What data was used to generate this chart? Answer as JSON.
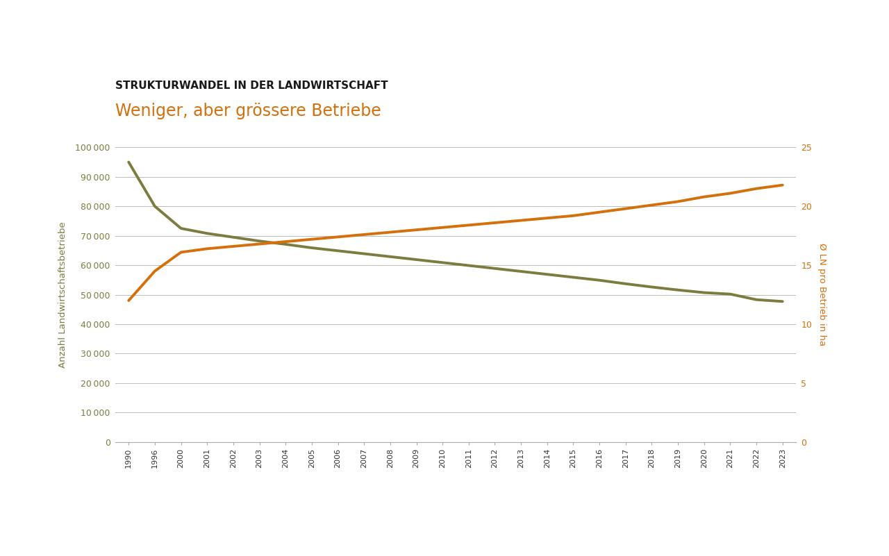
{
  "title_black": "STRUKTURWANDEL IN DER LANDWIRTSCHAFT",
  "title_orange": "Weniger, aber grössere Betriebe",
  "background_color": "#ffffff",
  "olive_color": "#7b7c3e",
  "orange_color": "#d4700c",
  "left_ylabel": "Anzahl Landwirtschaftsbetriebe",
  "right_ylabel": "Ø LN pro Betrieb in ha",
  "years": [
    1990,
    1996,
    2000,
    2001,
    2002,
    2003,
    2004,
    2005,
    2006,
    2007,
    2008,
    2009,
    2010,
    2011,
    2012,
    2013,
    2014,
    2015,
    2016,
    2017,
    2018,
    2019,
    2020,
    2021,
    2022,
    2023
  ],
  "betriebe": [
    95000,
    80000,
    72500,
    70800,
    69500,
    68200,
    67100,
    65900,
    64900,
    63900,
    62900,
    61900,
    60900,
    59900,
    58900,
    57900,
    56900,
    55900,
    54900,
    53700,
    52600,
    51600,
    50700,
    50200,
    48300,
    47700
  ],
  "flaeche": [
    12.0,
    14.5,
    16.1,
    16.4,
    16.6,
    16.8,
    17.0,
    17.2,
    17.4,
    17.6,
    17.8,
    18.0,
    18.2,
    18.4,
    18.6,
    18.8,
    19.0,
    19.2,
    19.5,
    19.8,
    20.1,
    20.4,
    20.8,
    21.1,
    21.5,
    21.8
  ],
  "left_yticks": [
    0,
    10000,
    20000,
    30000,
    40000,
    50000,
    60000,
    70000,
    80000,
    90000,
    100000
  ],
  "right_yticks": [
    0,
    5,
    10,
    15,
    20,
    25
  ],
  "left_ylim": [
    0,
    100000
  ],
  "right_ylim": [
    0,
    25
  ],
  "grid_color": "#bbbbbb",
  "tick_color_left": "#7b7c3e",
  "tick_color_right": "#d4700c",
  "axis_label_fontsize": 9.5,
  "title_black_fontsize": 11,
  "title_orange_fontsize": 17,
  "line_width": 2.8
}
